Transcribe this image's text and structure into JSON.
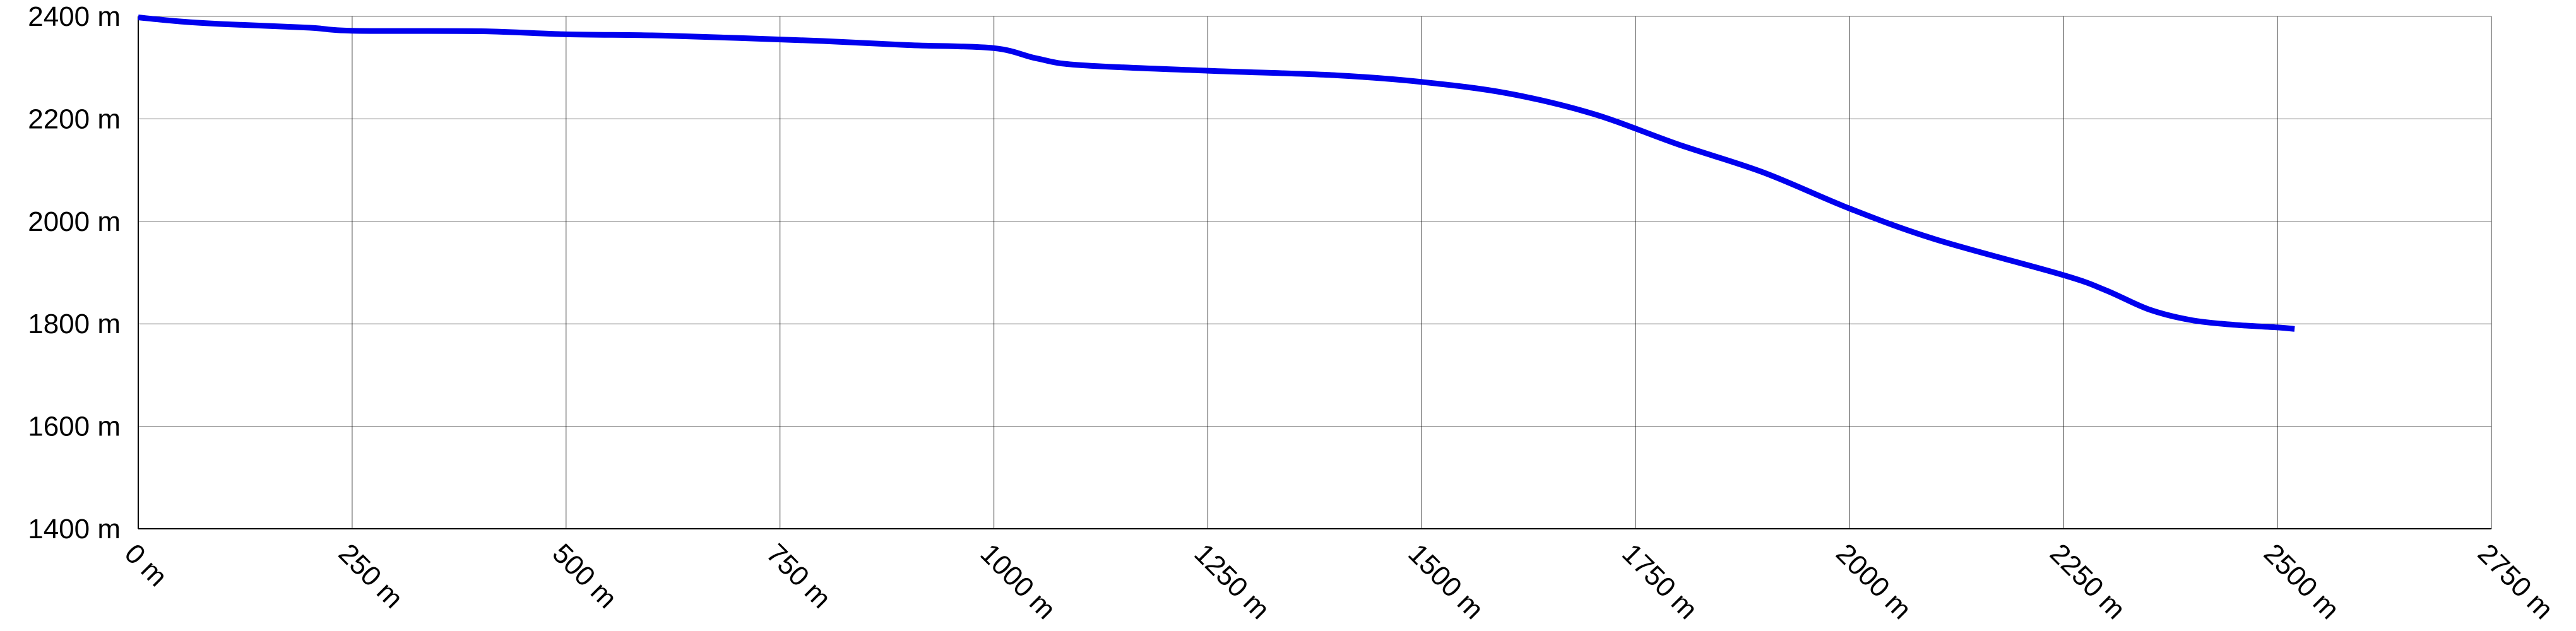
{
  "chart_data": {
    "type": "line",
    "title": "",
    "xlabel": "",
    "ylabel": "",
    "xlim": [
      0,
      2750
    ],
    "ylim": [
      1400,
      2400
    ],
    "x_ticks": [
      0,
      250,
      500,
      750,
      1000,
      1250,
      1500,
      1750,
      2000,
      2250,
      2500,
      2750
    ],
    "x_tick_labels": [
      "0 m",
      "250 m",
      "500 m",
      "750 m",
      "1000 m",
      "1250 m",
      "1500 m",
      "1750 m",
      "2000 m",
      "2250 m",
      "2500 m",
      "2750 m"
    ],
    "y_ticks": [
      1400,
      1600,
      1800,
      2000,
      2200,
      2400
    ],
    "y_tick_labels": [
      "1400 m",
      "1600 m",
      "1800 m",
      "2000 m",
      "2200 m",
      "2400 m"
    ],
    "grid": true,
    "legend": "none",
    "series": [
      {
        "color": "#0000ee",
        "x": [
          0,
          50,
          100,
          200,
          250,
          400,
          500,
          600,
          700,
          800,
          900,
          1000,
          1050,
          1100,
          1250,
          1400,
          1500,
          1600,
          1700,
          1800,
          1900,
          2000,
          2100,
          2250,
          2300,
          2350,
          2400,
          2450,
          2500,
          2520
        ],
        "y": [
          2398,
          2390,
          2385,
          2378,
          2372,
          2371,
          2365,
          2363,
          2358,
          2352,
          2344,
          2338,
          2318,
          2305,
          2294,
          2285,
          2272,
          2250,
          2210,
          2150,
          2095,
          2025,
          1965,
          1895,
          1865,
          1828,
          1807,
          1798,
          1793,
          1790
        ]
      }
    ]
  }
}
